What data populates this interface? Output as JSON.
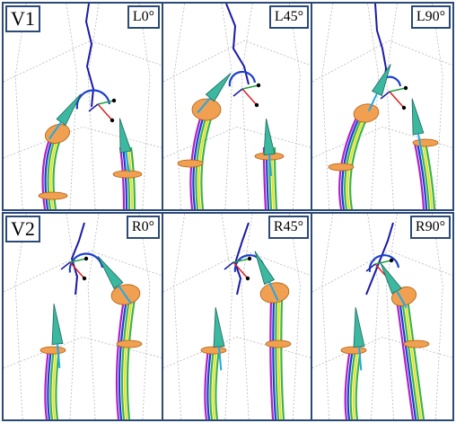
{
  "figure": {
    "rows": [
      {
        "label": "V1",
        "panels": [
          {
            "angle": "L0°"
          },
          {
            "angle": "L45°"
          },
          {
            "angle": "L90°"
          }
        ]
      },
      {
        "label": "V2",
        "panels": [
          {
            "angle": "R0°"
          },
          {
            "angle": "R45°"
          },
          {
            "angle": "R90°"
          }
        ]
      }
    ],
    "colors": {
      "frame": "#2c4a78",
      "grid": "#b8b8b8",
      "path": "#1a1aa8",
      "ellipse": "#f0a050",
      "cone": "#3cb8a0",
      "stroke_a": "#39b54a",
      "stroke_b": "#e8e020",
      "stroke_c": "#1a3fd0",
      "stroke_d": "#b020c8",
      "axis_red": "#e02020",
      "axis_green": "#20a040",
      "axis_cyan": "#20a8e8"
    }
  }
}
